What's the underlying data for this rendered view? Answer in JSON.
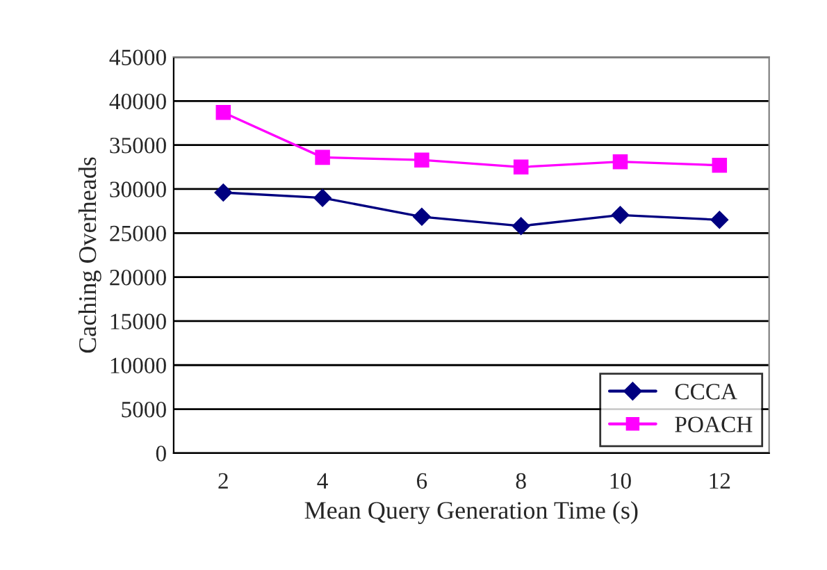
{
  "chart_data": {
    "type": "line",
    "xlabel": "Mean Query Generation Time (s)",
    "ylabel": "Caching Overheads",
    "categories": [
      "2",
      "4",
      "6",
      "8",
      "10",
      "12"
    ],
    "series": [
      {
        "name": "CCCA",
        "color": "#000080",
        "marker": "diamond",
        "values": [
          29600,
          29000,
          26850,
          25800,
          27050,
          26500
        ]
      },
      {
        "name": "POACH",
        "color": "#ff00ff",
        "marker": "square",
        "values": [
          38700,
          33600,
          33300,
          32500,
          33100,
          32700
        ]
      }
    ],
    "ylim": [
      0,
      45000
    ],
    "yticks": [
      0,
      5000,
      10000,
      15000,
      20000,
      25000,
      30000,
      35000,
      40000,
      45000
    ],
    "grid": "y",
    "legend": "bottom right",
    "line_style": "solid"
  }
}
